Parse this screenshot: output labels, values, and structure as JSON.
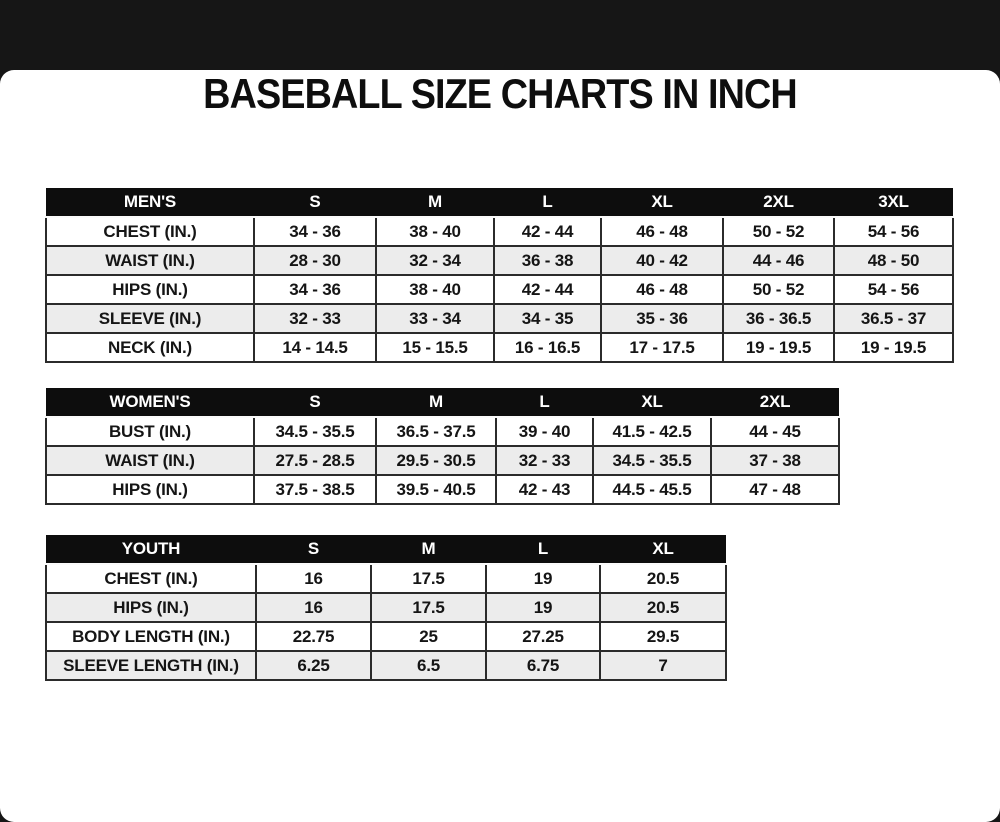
{
  "title": "BASEBALL SIZE CHARTS IN INCH",
  "colors": {
    "header_bg": "#0d0d0d",
    "header_text": "#ffffff",
    "row_alt_bg": "#ececec",
    "border": "#2b2b2b",
    "text": "#151515",
    "page_bg": "#ffffff"
  },
  "tables": [
    {
      "name": "mens",
      "header": [
        "MEN'S",
        "S",
        "M",
        "L",
        "XL",
        "2XL",
        "3XL"
      ],
      "rows": [
        [
          "CHEST (IN.)",
          "34 - 36",
          "38 - 40",
          "42 - 44",
          "46 - 48",
          "50 - 52",
          "54 - 56"
        ],
        [
          "WAIST (IN.)",
          "28 - 30",
          "32 - 34",
          "36 - 38",
          "40 - 42",
          "44 - 46",
          "48 - 50"
        ],
        [
          "HIPS (IN.)",
          "34 - 36",
          "38 - 40",
          "42 - 44",
          "46 - 48",
          "50 - 52",
          "54 - 56"
        ],
        [
          "SLEEVE (IN.)",
          "32 - 33",
          "33 - 34",
          "34 - 35",
          "35 - 36",
          "36 - 36.5",
          "36.5 - 37"
        ],
        [
          "NECK (IN.)",
          "14 - 14.5",
          "15 - 15.5",
          "16 - 16.5",
          "17 - 17.5",
          "19 - 19.5",
          "19 - 19.5"
        ]
      ]
    },
    {
      "name": "womens",
      "header": [
        "WOMEN'S",
        "S",
        "M",
        "L",
        "XL",
        "2XL"
      ],
      "rows": [
        [
          "BUST (IN.)",
          "34.5 - 35.5",
          "36.5 - 37.5",
          "39 - 40",
          "41.5 - 42.5",
          "44 - 45"
        ],
        [
          "WAIST (IN.)",
          "27.5 - 28.5",
          "29.5 - 30.5",
          "32 - 33",
          "34.5 - 35.5",
          "37 - 38"
        ],
        [
          "HIPS (IN.)",
          "37.5 - 38.5",
          "39.5 - 40.5",
          "42 - 43",
          "44.5 - 45.5",
          "47 - 48"
        ]
      ]
    },
    {
      "name": "youth",
      "header": [
        "YOUTH",
        "S",
        "M",
        "L",
        "XL"
      ],
      "rows": [
        [
          "CHEST (IN.)",
          "16",
          "17.5",
          "19",
          "20.5"
        ],
        [
          "HIPS (IN.)",
          "16",
          "17.5",
          "19",
          "20.5"
        ],
        [
          "BODY LENGTH (IN.)",
          "22.75",
          "25",
          "27.25",
          "29.5"
        ],
        [
          "SLEEVE LENGTH (IN.)",
          "6.25",
          "6.5",
          "6.75",
          "7"
        ]
      ]
    }
  ]
}
